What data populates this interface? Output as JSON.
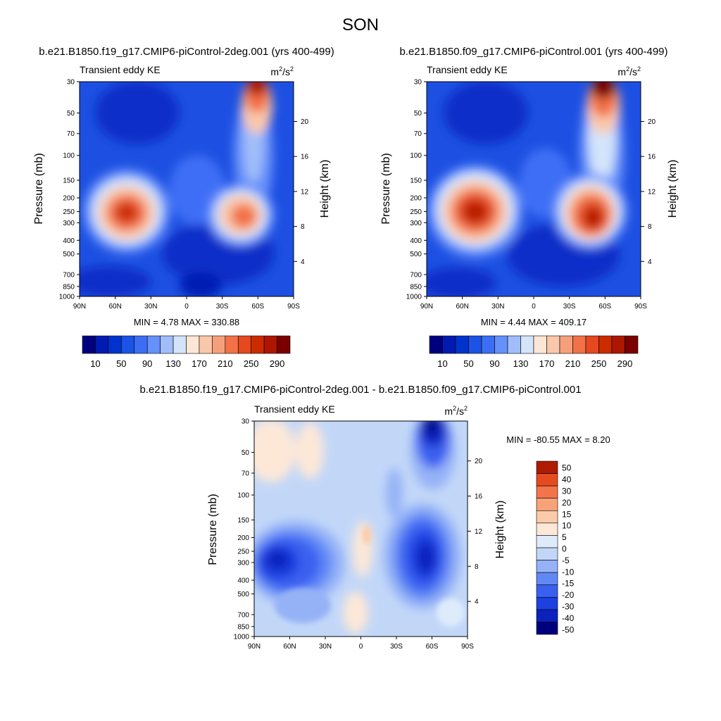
{
  "title": "SON",
  "colors": {
    "blue_red_16": [
      "#00007f",
      "#001ab2",
      "#0033cc",
      "#1a53e6",
      "#3c6ef5",
      "#6690fa",
      "#a0bdf9",
      "#d3e4fb",
      "#fde6d6",
      "#fac7aa",
      "#f5a07a",
      "#f27147",
      "#e6481f",
      "#cc2b00",
      "#ad1600",
      "#7a0000"
    ],
    "diff_14": [
      "#00007f",
      "#0b22bd",
      "#1d40e0",
      "#3a60f0",
      "#6189f6",
      "#95b2f7",
      "#c2d7f8",
      "#deebfb",
      "#fde8d8",
      "#fbcba9",
      "#f8a27a",
      "#f4744a",
      "#e64b20",
      "#b01a00"
    ]
  },
  "panels": [
    {
      "id": "top-left",
      "case_title": "b.e21.B1850.f19_g17.CMIP6-piControl-2deg.001 (yrs 400-499)",
      "left_label": "Transient eddy KE",
      "units_base": "m",
      "units_sup1": "2",
      "units_mid": "/s",
      "units_sup2": "2",
      "minmax": "MIN =   4.78  MAX = 330.88"
    },
    {
      "id": "top-right",
      "case_title": "b.e21.B1850.f09_g17.CMIP6-piControl.001 (yrs 400-499)",
      "left_label": "Transient eddy KE",
      "units_base": "m",
      "units_sup1": "2",
      "units_mid": "/s",
      "units_sup2": "2",
      "minmax": "MIN =   4.44  MAX = 409.17"
    },
    {
      "id": "bottom",
      "case_title": "b.e21.B1850.f19_g17.CMIP6-piControl-2deg.001 - b.e21.B1850.f09_g17.CMIP6-piControl.001",
      "left_label": "Transient eddy KE",
      "units_base": "m",
      "units_sup1": "2",
      "units_mid": "/s",
      "units_sup2": "2",
      "minmax": "MIN = -80.55  MAX =   8.20"
    }
  ],
  "chart_data": [
    {
      "type": "heatmap",
      "panel": "top-left",
      "title": "b.e21.B1850.f19_g17.CMIP6-piControl-2deg.001 (yrs 400-499)",
      "variable": "Transient eddy KE",
      "units": "m2/s2",
      "ylabel": "Pressure (mb)",
      "ylabel_right": "Height (km)",
      "x_ticks": [
        "90N",
        "60N",
        "30N",
        "0",
        "30S",
        "60S",
        "90S"
      ],
      "y_ticks": [
        30,
        50,
        70,
        100,
        150,
        200,
        250,
        300,
        400,
        500,
        700,
        850,
        1000
      ],
      "y_right_ticks": [
        4,
        8,
        12,
        16,
        20
      ],
      "xlim_lat": [
        90,
        -90
      ],
      "ylim_pressure": [
        1000,
        30
      ],
      "min": 4.78,
      "max": 330.88,
      "colorbar_labels": [
        "10",
        "50",
        "90",
        "130",
        "170",
        "210",
        "250",
        "290"
      ],
      "features": [
        {
          "lat": 45,
          "p": 270,
          "value": 230
        },
        {
          "lat": -52,
          "p": 290,
          "value": 205
        },
        {
          "lat": -60,
          "p": 30,
          "value": 330
        }
      ]
    },
    {
      "type": "heatmap",
      "panel": "top-right",
      "title": "b.e21.B1850.f09_g17.CMIP6-piControl.001 (yrs 400-499)",
      "variable": "Transient eddy KE",
      "units": "m2/s2",
      "ylabel": "Pressure (mb)",
      "ylabel_right": "Height (km)",
      "x_ticks": [
        "90N",
        "60N",
        "30N",
        "0",
        "30S",
        "60S",
        "90S"
      ],
      "y_ticks": [
        30,
        50,
        70,
        100,
        150,
        200,
        250,
        300,
        400,
        500,
        700,
        850,
        1000
      ],
      "y_right_ticks": [
        4,
        8,
        12,
        16,
        20
      ],
      "xlim_lat": [
        90,
        -90
      ],
      "ylim_pressure": [
        1000,
        30
      ],
      "min": 4.44,
      "max": 409.17,
      "colorbar_labels": [
        "10",
        "50",
        "90",
        "130",
        "170",
        "210",
        "250",
        "290"
      ],
      "features": [
        {
          "lat": 45,
          "p": 260,
          "value": 270
        },
        {
          "lat": -50,
          "p": 290,
          "value": 280
        },
        {
          "lat": -60,
          "p": 30,
          "value": 400
        }
      ]
    },
    {
      "type": "heatmap",
      "panel": "bottom",
      "title": "b.e21.B1850.f19_g17.CMIP6-piControl-2deg.001 - b.e21.B1850.f09_g17.CMIP6-piControl.001",
      "variable": "Transient eddy KE",
      "units": "m2/s2",
      "ylabel": "Pressure (mb)",
      "ylabel_right": "Height (km)",
      "x_ticks": [
        "90N",
        "60N",
        "30N",
        "0",
        "30S",
        "60S",
        "90S"
      ],
      "y_ticks": [
        30,
        50,
        70,
        100,
        150,
        200,
        250,
        300,
        400,
        500,
        700,
        850,
        1000
      ],
      "y_right_ticks": [
        4,
        8,
        12,
        16,
        20
      ],
      "xlim_lat": [
        90,
        -90
      ],
      "ylim_pressure": [
        1000,
        30
      ],
      "min": -80.55,
      "max": 8.2,
      "colorbar_labels": [
        "50",
        "40",
        "30",
        "20",
        "15",
        "10",
        "5",
        "0",
        "-5",
        "-10",
        "-15",
        "-20",
        "-30",
        "-40",
        "-50"
      ],
      "features": [
        {
          "lat": 45,
          "p": 280,
          "value": -35
        },
        {
          "lat": -50,
          "p": 270,
          "value": -45
        },
        {
          "lat": -62,
          "p": 30,
          "value": -80
        },
        {
          "lat": 2,
          "p": 190,
          "value": 8
        }
      ]
    }
  ]
}
